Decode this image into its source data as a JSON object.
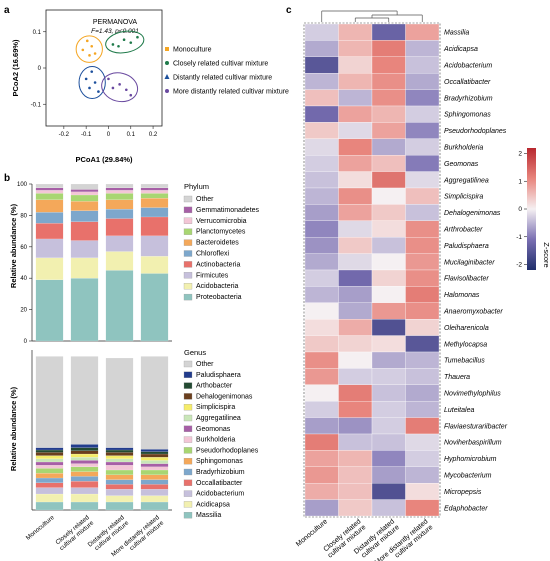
{
  "panel_labels": {
    "a": "a",
    "b": "b",
    "c": "c"
  },
  "chart_data": [
    {
      "type": "scatter",
      "panel": "a",
      "xlabel": "PCoA1 (29.84%)",
      "ylabel": "PCoA2 (16.69%)",
      "annotation_line1": "PERMANOVA",
      "annotation_line2": "F=1.43, p<0.001",
      "xlim": [
        -0.28,
        0.24
      ],
      "ylim": [
        -0.16,
        0.16
      ],
      "xticks": [
        "-0.2",
        "-0.1",
        "0",
        "0.1",
        "0.2"
      ],
      "yticks": [
        "-0.1",
        "0",
        "0.1"
      ],
      "grid": false,
      "legend_position": "right",
      "series": [
        {
          "name": "Monoculture",
          "marker": "square",
          "color": "#f5a623",
          "points": [
            [
              -0.115,
              0.05
            ],
            [
              -0.095,
              0.075
            ],
            [
              -0.075,
              0.06
            ],
            [
              -0.06,
              0.04
            ],
            [
              -0.085,
              0.035
            ]
          ]
        },
        {
          "name": "Closely related cultivar mixture",
          "marker": "circle",
          "color": "#1f7a4a",
          "points": [
            [
              0.02,
              0.065
            ],
            [
              0.07,
              0.078
            ],
            [
              0.1,
              0.07
            ],
            [
              0.13,
              0.085
            ],
            [
              0.045,
              0.06
            ]
          ]
        },
        {
          "name": "Distantly related cultivar mixture",
          "marker": "triangle",
          "color": "#1c4f9c",
          "points": [
            [
              -0.1,
              -0.03
            ],
            [
              -0.085,
              -0.055
            ],
            [
              -0.06,
              -0.04
            ],
            [
              -0.045,
              -0.065
            ],
            [
              -0.075,
              -0.01
            ]
          ]
        },
        {
          "name": "More distantly related cultivar mixture",
          "marker": "circle",
          "color": "#6a4aa0",
          "points": [
            [
              0.0,
              -0.03
            ],
            [
              0.05,
              -0.045
            ],
            [
              0.08,
              -0.06
            ],
            [
              0.02,
              -0.055
            ],
            [
              0.1,
              -0.075
            ]
          ]
        }
      ]
    },
    {
      "type": "bar",
      "stacked": true,
      "panel": "b-phylum",
      "legend_title": "Phylum",
      "ylabel": "Relative abundance (%)",
      "ylim": [
        0,
        100
      ],
      "yticks": [
        "0",
        "20",
        "40",
        "60",
        "80",
        "100"
      ],
      "categories": [
        "Monoculture",
        "Closely related cultivar mixture",
        "Distantly related cultivar mixture",
        "More distantly related cultivar mixture"
      ],
      "series": [
        {
          "name": "Proteobacteria",
          "color": "#8fc4bf",
          "values": [
            39,
            40,
            45,
            43
          ]
        },
        {
          "name": "Acidobacteria",
          "color": "#f2f0b0",
          "values": [
            14,
            13,
            12,
            11
          ]
        },
        {
          "name": "Firmicutes",
          "color": "#c6c0dc",
          "values": [
            12,
            11,
            10,
            13
          ]
        },
        {
          "name": "Actinobacteria",
          "color": "#e8716b",
          "values": [
            10,
            12,
            11,
            12
          ]
        },
        {
          "name": "Chloroflexi",
          "color": "#7da7cc",
          "values": [
            7,
            7,
            6,
            6
          ]
        },
        {
          "name": "Bacteroidetes",
          "color": "#f4a85a",
          "values": [
            8,
            6,
            6,
            6
          ]
        },
        {
          "name": "Planctomycetes",
          "color": "#a8d672",
          "values": [
            4,
            4,
            4,
            3
          ]
        },
        {
          "name": "Verrucomicrobia",
          "color": "#f3c6d6",
          "values": [
            2,
            2,
            2,
            2
          ]
        },
        {
          "name": "Gemmatimonadetes",
          "color": "#a65fa6",
          "values": [
            1.5,
            1.5,
            1.5,
            1.5
          ]
        },
        {
          "name": "Other",
          "color": "#d4d4d4",
          "values": [
            2.5,
            3.5,
            2.5,
            2.5
          ]
        }
      ]
    },
    {
      "type": "bar",
      "stacked": true,
      "panel": "b-genus",
      "legend_title": "Genus",
      "ylabel": "Relative abundance (%)",
      "ylim": [
        0,
        100
      ],
      "categories": [
        "Monoculture",
        "Closely related cultivar mixture",
        "Distantly related cultivar mixture",
        "More distantly related cultivar mixture"
      ],
      "series": [
        {
          "name": "Massilia",
          "color": "#8fc4bf",
          "values": [
            5,
            5,
            5,
            5
          ]
        },
        {
          "name": "Acidicapsa",
          "color": "#f2f0b0",
          "values": [
            5,
            5,
            4,
            4
          ]
        },
        {
          "name": "Acidobacterium",
          "color": "#c6c0dc",
          "values": [
            4,
            4,
            4,
            4
          ]
        },
        {
          "name": "Occallatibacter",
          "color": "#e8716b",
          "values": [
            3,
            4,
            3,
            3
          ]
        },
        {
          "name": "Bradyrhizobium",
          "color": "#7da7cc",
          "values": [
            3,
            3,
            3,
            3
          ]
        },
        {
          "name": "Sphingomonas",
          "color": "#f4a85a",
          "values": [
            3,
            3,
            3,
            3
          ]
        },
        {
          "name": "Pseudorhodoplanes",
          "color": "#a8d672",
          "values": [
            3,
            3,
            3,
            3
          ]
        },
        {
          "name": "Burkholderia",
          "color": "#f3c6d6",
          "values": [
            2,
            2,
            3,
            2
          ]
        },
        {
          "name": "Geomonas",
          "color": "#a65fa6",
          "values": [
            2,
            2,
            2,
            2
          ]
        },
        {
          "name": "Aggregatilinea",
          "color": "#c9e6b8",
          "values": [
            2,
            2,
            2,
            2
          ]
        },
        {
          "name": "Simplicispira",
          "color": "#f5ec6a",
          "values": [
            2,
            2,
            2,
            2
          ]
        },
        {
          "name": "Dehalogenimonas",
          "color": "#6b3f1e",
          "values": [
            2,
            2,
            2,
            2
          ]
        },
        {
          "name": "Arthobacter",
          "color": "#234a32",
          "values": [
            1.5,
            2,
            1.5,
            1.5
          ]
        },
        {
          "name": "Paludisphaera",
          "color": "#223c8c",
          "values": [
            1.5,
            2,
            1.5,
            1.5
          ]
        },
        {
          "name": "Other",
          "color": "#d4d4d4",
          "values": [
            57,
            55,
            56,
            58
          ]
        }
      ]
    },
    {
      "type": "heatmap",
      "panel": "c",
      "colorbar_label": "Z-score",
      "colorbar_ticks": [
        "2",
        "1",
        "0",
        "-1",
        "-2"
      ],
      "zlim": [
        -2.2,
        2.2
      ],
      "columns": [
        "Monoculture",
        "Closely related cultivar mixture",
        "Distantly related cultivar mixture",
        "More distantly related cultivar mixture"
      ],
      "rows": [
        "Massilia",
        "Acidicapsa",
        "Acidobacterium",
        "Occallatibacter",
        "Bradyrhizobium",
        "Sphingomonas",
        "Pseudorhodoplanes",
        "Burkholderia",
        "Geomonas",
        "Aggregatilinea",
        "Simplicispira",
        "Dehalogenimonas",
        "Arthrobacter",
        "Paludisphaera",
        "Mucilaginibacter",
        "Flavisolibacter",
        "Halomonas",
        "Anaeromyxobacter",
        "Oleiharenicola",
        "Methylocapsa",
        "Tumebacillus",
        "Thauera",
        "Novimethylophilus",
        "Luteitalea",
        "Flaviaesturariibacter",
        "Noviherbaspirillum",
        "Hyphomicrobium",
        "Mycobacterium",
        "Micropepsis",
        "Edaphobacter"
      ],
      "values": [
        [
          -0.3,
          0.6,
          -1.3,
          0.8
        ],
        [
          -0.6,
          0.6,
          1.2,
          -0.5
        ],
        [
          -1.5,
          0.3,
          1.1,
          -0.4
        ],
        [
          -0.5,
          0.6,
          1.0,
          -0.6
        ],
        [
          0.5,
          -0.5,
          1.0,
          -0.9
        ],
        [
          -1.2,
          0.8,
          0.6,
          -0.3
        ],
        [
          0.4,
          -0.2,
          0.8,
          -0.9
        ],
        [
          -0.2,
          1.1,
          -0.6,
          -0.3
        ],
        [
          -0.3,
          0.8,
          0.5,
          -1.0
        ],
        [
          -0.4,
          0.2,
          1.3,
          -0.2
        ],
        [
          -0.5,
          1.0,
          0.0,
          0.5
        ],
        [
          -0.7,
          0.8,
          0.4,
          -0.4
        ],
        [
          -0.9,
          -0.2,
          0.2,
          1.0
        ],
        [
          -0.8,
          0.4,
          -0.4,
          1.0
        ],
        [
          -0.6,
          -0.2,
          0.0,
          0.9
        ],
        [
          -0.3,
          -1.2,
          0.3,
          1.0
        ],
        [
          -0.5,
          -0.7,
          0.0,
          1.2
        ],
        [
          0.0,
          -0.6,
          0.9,
          1.0
        ],
        [
          0.2,
          0.7,
          -1.6,
          0.3
        ],
        [
          0.4,
          0.3,
          0.2,
          -1.5
        ],
        [
          1.0,
          0.0,
          -0.6,
          -0.5
        ],
        [
          0.9,
          -0.3,
          -0.3,
          -0.4
        ],
        [
          0.0,
          1.2,
          -0.4,
          -0.6
        ],
        [
          -0.3,
          1.1,
          -0.3,
          -0.5
        ],
        [
          -0.7,
          -0.8,
          -0.3,
          1.2
        ],
        [
          1.2,
          -0.4,
          -0.4,
          -0.2
        ],
        [
          0.8,
          0.6,
          -0.9,
          -0.3
        ],
        [
          0.9,
          0.5,
          -0.7,
          -0.5
        ],
        [
          0.7,
          0.5,
          -1.6,
          0.2
        ],
        [
          -0.7,
          0.4,
          -0.4,
          1.1
        ]
      ]
    }
  ]
}
